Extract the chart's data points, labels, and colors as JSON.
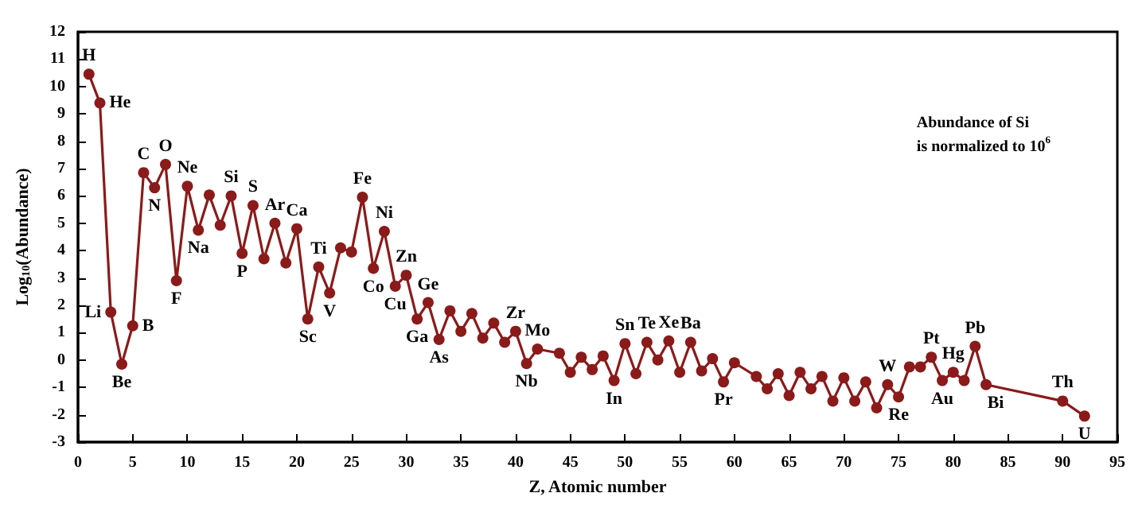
{
  "chart_data": {
    "type": "line",
    "x": [
      1,
      2,
      3,
      4,
      5,
      6,
      7,
      8,
      9,
      10,
      11,
      12,
      13,
      14,
      15,
      16,
      17,
      18,
      19,
      20,
      21,
      22,
      23,
      24,
      25,
      26,
      27,
      28,
      29,
      30,
      31,
      32,
      33,
      34,
      35,
      36,
      37,
      38,
      39,
      40,
      41,
      42,
      44,
      45,
      46,
      47,
      48,
      49,
      50,
      51,
      52,
      53,
      54,
      55,
      56,
      57,
      58,
      59,
      60,
      62,
      63,
      64,
      65,
      66,
      67,
      68,
      69,
      70,
      71,
      72,
      73,
      74,
      75,
      76,
      77,
      78,
      79,
      80,
      81,
      82,
      83,
      90,
      92
    ],
    "series": [
      {
        "color": "#8b1a1a",
        "values": [
          10.45,
          9.4,
          1.75,
          -0.15,
          1.25,
          6.85,
          6.3,
          7.15,
          2.9,
          6.35,
          4.75,
          6.03,
          4.93,
          6.0,
          3.9,
          5.65,
          3.7,
          5.0,
          3.55,
          4.8,
          1.5,
          3.4,
          2.45,
          4.1,
          3.95,
          5.95,
          3.35,
          4.7,
          2.7,
          3.1,
          1.5,
          2.1,
          0.75,
          1.8,
          1.05,
          1.7,
          0.8,
          1.35,
          0.65,
          1.05,
          -0.13,
          0.4,
          0.25,
          -0.45,
          0.1,
          -0.35,
          0.15,
          -0.75,
          0.6,
          -0.5,
          0.65,
          0.0,
          0.7,
          -0.45,
          0.65,
          -0.4,
          0.05,
          -0.8,
          -0.1,
          -0.6,
          -1.05,
          -0.5,
          -1.3,
          -0.45,
          -1.05,
          -0.6,
          -1.5,
          -0.65,
          -1.5,
          -0.8,
          -1.75,
          -0.9,
          -1.35,
          -0.25,
          -0.25,
          0.1,
          -0.75,
          -0.45,
          -0.75,
          0.5,
          -0.9,
          -1.5,
          -2.05
        ]
      }
    ],
    "xlabel": "Z, Atomic number",
    "ylabel": "Log$_{10}$(Abundance)",
    "xlim": [
      0,
      95
    ],
    "xticks": [
      0,
      5,
      10,
      15,
      20,
      25,
      30,
      35,
      40,
      45,
      50,
      55,
      60,
      65,
      70,
      75,
      80,
      85,
      90,
      95
    ],
    "ylim": [
      -3,
      12
    ],
    "yticks": [
      -3,
      -2,
      -1,
      0,
      1,
      2,
      3,
      4,
      5,
      6,
      7,
      8,
      9,
      10,
      11,
      12
    ],
    "grid": false,
    "marker": "circle",
    "line_style": "solid",
    "annotations": [
      {
        "text": "H",
        "x": 1,
        "y": 10.45
      },
      {
        "text": "He",
        "x": 2,
        "y": 9.4
      },
      {
        "text": "Li",
        "x": 3,
        "y": 1.75
      },
      {
        "text": "Be",
        "x": 4,
        "y": -0.15
      },
      {
        "text": "B",
        "x": 5,
        "y": 1.25
      },
      {
        "text": "C",
        "x": 6,
        "y": 6.85
      },
      {
        "text": "N",
        "x": 7,
        "y": 6.3
      },
      {
        "text": "O",
        "x": 8,
        "y": 7.15
      },
      {
        "text": "F",
        "x": 9,
        "y": 2.9
      },
      {
        "text": "Ne",
        "x": 10,
        "y": 6.35
      },
      {
        "text": "Na",
        "x": 11,
        "y": 4.75
      },
      {
        "text": "Si",
        "x": 14,
        "y": 6.0
      },
      {
        "text": "P",
        "x": 15,
        "y": 3.9
      },
      {
        "text": "S",
        "x": 16,
        "y": 5.65
      },
      {
        "text": "Ar",
        "x": 18,
        "y": 5.0
      },
      {
        "text": "Ca",
        "x": 20,
        "y": 4.8
      },
      {
        "text": "Sc",
        "x": 21,
        "y": 1.5
      },
      {
        "text": "Ti",
        "x": 22,
        "y": 3.4
      },
      {
        "text": "V",
        "x": 23,
        "y": 2.45
      },
      {
        "text": "Fe",
        "x": 26,
        "y": 5.95
      },
      {
        "text": "Co",
        "x": 27,
        "y": 3.35
      },
      {
        "text": "Ni",
        "x": 28,
        "y": 4.7
      },
      {
        "text": "Cu",
        "x": 29,
        "y": 2.7
      },
      {
        "text": "Zn",
        "x": 30,
        "y": 3.1
      },
      {
        "text": "Ga",
        "x": 31,
        "y": 1.5
      },
      {
        "text": "Ge",
        "x": 32,
        "y": 2.1
      },
      {
        "text": "As",
        "x": 33,
        "y": 0.75
      },
      {
        "text": "Zr",
        "x": 40,
        "y": 1.05
      },
      {
        "text": "Nb",
        "x": 41,
        "y": -0.13
      },
      {
        "text": "Mo",
        "x": 42,
        "y": 0.4
      },
      {
        "text": "Sn",
        "x": 50,
        "y": 0.6
      },
      {
        "text": "In",
        "x": 49,
        "y": -0.75
      },
      {
        "text": "Te",
        "x": 52,
        "y": 0.65
      },
      {
        "text": "Xe",
        "x": 54,
        "y": 0.7
      },
      {
        "text": "Ba",
        "x": 56,
        "y": 0.65
      },
      {
        "text": "Pr",
        "x": 59,
        "y": -0.8
      },
      {
        "text": "W",
        "x": 74,
        "y": -0.9
      },
      {
        "text": "Re",
        "x": 75,
        "y": -1.35
      },
      {
        "text": "Pt",
        "x": 78,
        "y": 0.1
      },
      {
        "text": "Au",
        "x": 79,
        "y": -0.75
      },
      {
        "text": "Hg",
        "x": 80,
        "y": -0.45
      },
      {
        "text": "Pb",
        "x": 82,
        "y": 0.5
      },
      {
        "text": "Bi",
        "x": 83,
        "y": -0.9
      },
      {
        "text": "Th",
        "x": 90,
        "y": -1.5
      },
      {
        "text": "U",
        "x": 92,
        "y": -2.05
      },
      "Abundance of Si\nis normalized to 10$^{6}$"
    ]
  }
}
